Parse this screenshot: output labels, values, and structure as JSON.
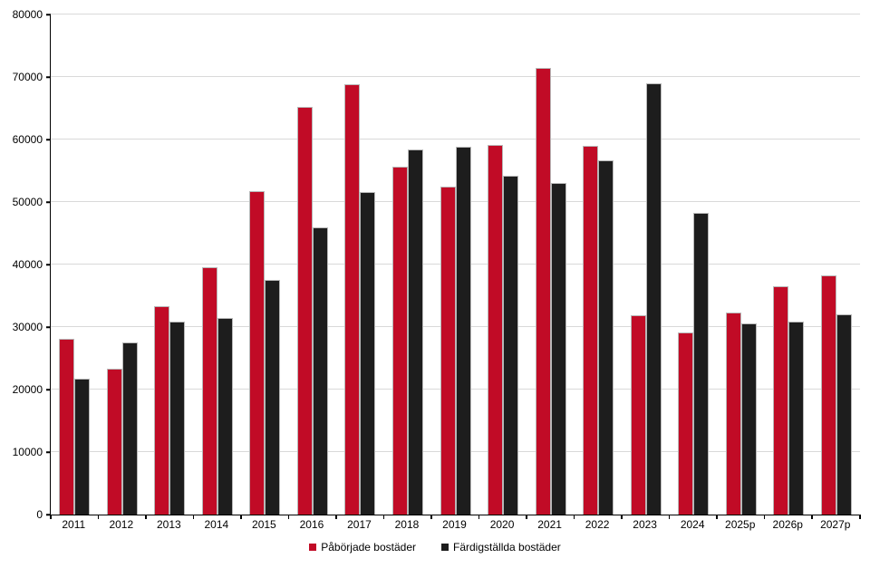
{
  "chart_data": {
    "type": "bar",
    "title": "",
    "xlabel": "",
    "ylabel": "",
    "categories": [
      "2011",
      "2012",
      "2013",
      "2014",
      "2015",
      "2016",
      "2017",
      "2018",
      "2019",
      "2020",
      "2021",
      "2022",
      "2023",
      "2024",
      "2025p",
      "2026p",
      "2027p"
    ],
    "series": [
      {
        "name": "Påbörjade bostäder",
        "color": "#c10b26",
        "values": [
          28100,
          23400,
          33300,
          39500,
          51700,
          65200,
          68900,
          55700,
          52500,
          59100,
          71500,
          59000,
          31900,
          29100,
          32300,
          36500,
          38200
        ]
      },
      {
        "name": "Färdigställda bostäder",
        "color": "#1d1d1d",
        "values": [
          21700,
          27600,
          30900,
          31500,
          37500,
          45900,
          51600,
          58400,
          58800,
          54200,
          53000,
          56700,
          69000,
          48300,
          30600,
          30800,
          32100
        ]
      }
    ],
    "ylim": [
      0,
      80000
    ],
    "ytick_step": 10000,
    "ytick_labels": [
      "0",
      "10000",
      "20000",
      "30000",
      "40000",
      "50000",
      "60000",
      "70000",
      "80000"
    ],
    "grid": "horizontal",
    "gridline_color": "#d9d9d9",
    "axis_color": "#000000",
    "background": "#ffffff",
    "legend_position": "bottom-center"
  }
}
